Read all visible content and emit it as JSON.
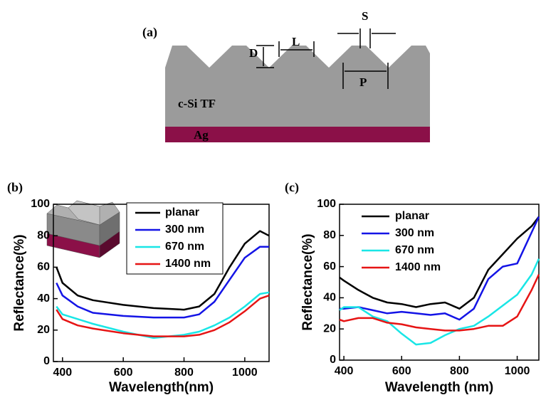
{
  "diagram": {
    "panel": "(a)",
    "depth": "D",
    "length": "L",
    "spacing": "S",
    "period": "P",
    "film": "c-Si TF",
    "metal": "Ag"
  },
  "chart_data": [
    {
      "type": "line",
      "panel": "(b)",
      "x_label": "Wavelength(nm)",
      "y_label": "Reflectance(%)",
      "xlim": [
        370,
        1080
      ],
      "xticks": [
        400,
        600,
        800,
        1000
      ],
      "ylim": [
        0,
        100
      ],
      "yticks": [
        0,
        20,
        40,
        60,
        80,
        100
      ],
      "legend": "upper-center",
      "legend_box": true,
      "x": [
        380,
        400,
        450,
        500,
        600,
        700,
        800,
        850,
        900,
        950,
        1000,
        1050,
        1080
      ],
      "series": [
        {
          "name": "planar",
          "color": "#000000",
          "values": [
            60,
            50,
            42,
            39,
            36,
            34,
            33,
            35,
            43,
            60,
            75,
            83,
            80
          ]
        },
        {
          "name": "300 nm",
          "color": "#1414e6",
          "values": [
            50,
            42,
            35,
            31,
            29,
            28,
            28,
            30,
            38,
            52,
            66,
            73,
            73
          ]
        },
        {
          "name": "670 nm",
          "color": "#19e6e6",
          "values": [
            35,
            30,
            27,
            24,
            19,
            15,
            17,
            19,
            23,
            28,
            35,
            43,
            44
          ]
        },
        {
          "name": "1400 nm",
          "color": "#e61414",
          "values": [
            33,
            27,
            23,
            21,
            18,
            16,
            16,
            17,
            20,
            25,
            32,
            40,
            42
          ]
        }
      ]
    },
    {
      "type": "line",
      "panel": "(c)",
      "x_label": "Wavelength (nm)",
      "y_label": "Reflectance(%)",
      "xlim": [
        385,
        1075
      ],
      "xticks": [
        400,
        600,
        800,
        1000
      ],
      "ylim": [
        0,
        100
      ],
      "yticks": [
        0,
        20,
        40,
        60,
        80,
        100
      ],
      "legend": "upper-left",
      "legend_box": false,
      "x": [
        385,
        400,
        450,
        500,
        550,
        600,
        650,
        700,
        750,
        800,
        850,
        900,
        950,
        1000,
        1050,
        1075
      ],
      "series": [
        {
          "name": "planar",
          "color": "#000000",
          "values": [
            53,
            51,
            45,
            40,
            37,
            36,
            34,
            36,
            37,
            33,
            40,
            58,
            68,
            78,
            86,
            92
          ]
        },
        {
          "name": "300 nm",
          "color": "#1414e6",
          "values": [
            33,
            33,
            34,
            32,
            30,
            31,
            30,
            29,
            30,
            26,
            33,
            52,
            60,
            62,
            82,
            92
          ]
        },
        {
          "name": "670 nm",
          "color": "#19e6e6",
          "values": [
            32,
            34,
            34,
            28,
            25,
            17,
            10,
            11,
            16,
            20,
            22,
            28,
            35,
            42,
            55,
            65
          ]
        },
        {
          "name": "1400 nm",
          "color": "#e61414",
          "values": [
            26,
            25,
            27,
            27,
            24,
            23,
            21,
            20,
            19,
            19,
            20,
            22,
            22,
            28,
            45,
            55
          ]
        }
      ]
    }
  ]
}
